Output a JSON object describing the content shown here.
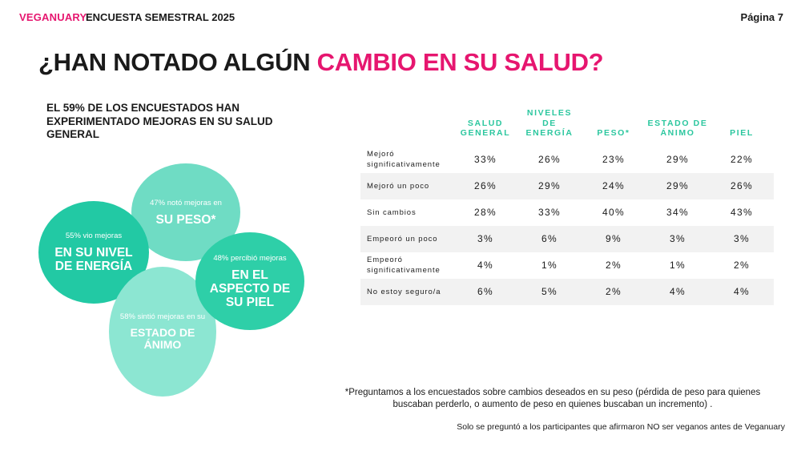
{
  "header": {
    "brand": "VEGANUARY",
    "survey": "ENCUESTA SEMESTRAL 2025",
    "page": "Página 7"
  },
  "title": {
    "prefix": "¿HAN NOTADO ALGÚN ",
    "highlight": "CAMBIO EN SU SALUD?"
  },
  "subtitle": "EL 59% DE LOS ENCUESTADOS HAN EXPERIMENTADO MEJORAS EN SU SALUD GENERAL",
  "bubbles": {
    "peso": {
      "small": "47% notó mejoras en",
      "big": "SU PESO*"
    },
    "energia": {
      "small": "55% vio mejoras",
      "big": "EN SU NIVEL DE ENERGÍA"
    },
    "piel": {
      "small": "48% percibió mejoras",
      "big": "EN EL ASPECTO DE SU PIEL"
    },
    "animo": {
      "small": "58% sintió mejoras en su",
      "big": "ESTADO DE ÁNIMO"
    }
  },
  "colors": {
    "accent": "#e6166f",
    "teal_header": "#2cc79f"
  },
  "table": {
    "columns": [
      "SALUD GENERAL",
      "NIVELES DE ENERGÍA",
      "PESO*",
      "ESTADO DE ÁNIMO",
      "PIEL"
    ],
    "rows": [
      {
        "label": "Mejoró significativamente",
        "values": [
          "33%",
          "26%",
          "23%",
          "29%",
          "22%"
        ]
      },
      {
        "label": "Mejoró un poco",
        "values": [
          "26%",
          "29%",
          "24%",
          "29%",
          "26%"
        ]
      },
      {
        "label": "Sin cambios",
        "values": [
          "28%",
          "33%",
          "40%",
          "34%",
          "43%"
        ]
      },
      {
        "label": "Empeoró un poco",
        "values": [
          "3%",
          "6%",
          "9%",
          "3%",
          "3%"
        ]
      },
      {
        "label": "Empeoró significativamente",
        "values": [
          "4%",
          "1%",
          "2%",
          "1%",
          "2%"
        ]
      },
      {
        "label": "No estoy seguro/a",
        "values": [
          "6%",
          "5%",
          "2%",
          "4%",
          "4%"
        ]
      }
    ]
  },
  "footnotes": {
    "note1": "*Preguntamos a los encuestados sobre cambios deseados en su peso (pérdida de peso para quienes buscaban perderlo, o aumento de peso en quienes buscaban un incremento) .",
    "note2": "Solo se preguntó a  los participantes que afirmaron NO ser veganos antes de Veganuary"
  }
}
